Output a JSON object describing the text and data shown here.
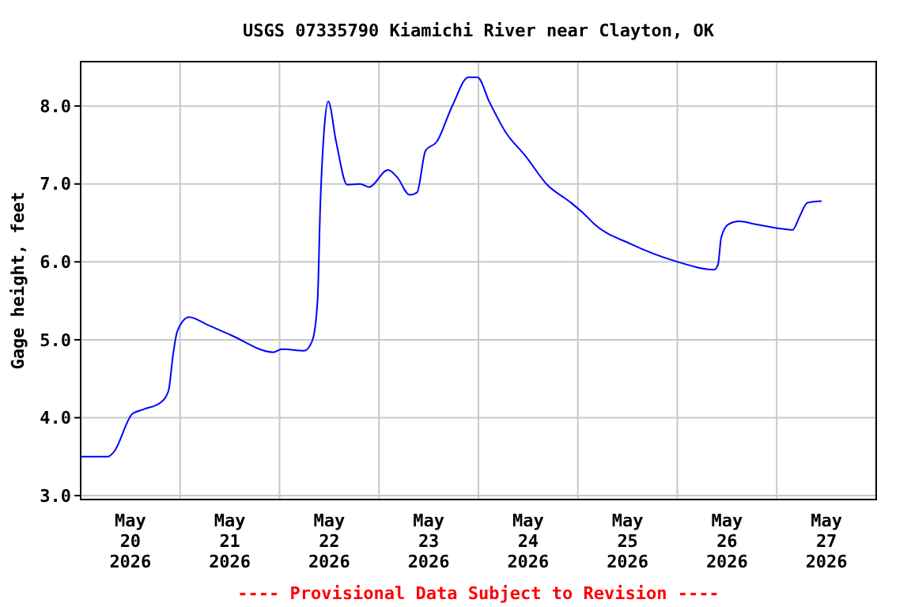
{
  "chart_data": {
    "type": "line",
    "title": "USGS 07335790 Kiamichi River near Clayton, OK",
    "ylabel": "Gage height, feet",
    "annotations": [
      "---- Provisional Data Subject to Revision ----"
    ],
    "x": [
      "2026-05-20T00:00",
      "2026-05-20T06:30",
      "2026-05-20T08:00",
      "2026-05-20T12:30",
      "2026-05-20T15:20",
      "2026-05-20T19:10",
      "2026-05-20T21:10",
      "2026-05-20T22:20",
      "2026-05-20T23:20",
      "2026-05-21T02:10",
      "2026-05-21T06:40",
      "2026-05-21T12:15",
      "2026-05-21T22:35",
      "2026-05-22T00:30",
      "2026-05-22T06:00",
      "2026-05-22T07:55",
      "2026-05-22T09:10",
      "2026-05-22T09:50",
      "2026-05-22T10:50",
      "2026-05-22T11:45",
      "2026-05-22T13:40",
      "2026-05-22T16:20",
      "2026-05-22T19:25",
      "2026-05-22T21:35",
      "2026-05-23T02:10",
      "2026-05-23T04:20",
      "2026-05-23T07:25",
      "2026-05-23T09:10",
      "2026-05-23T11:15",
      "2026-05-23T13:55",
      "2026-05-23T17:45",
      "2026-05-23T21:35",
      "2026-05-23T23:45",
      "2026-05-24T02:40",
      "2026-05-24T06:30",
      "2026-05-24T11:30",
      "2026-05-24T16:35",
      "2026-05-24T21:50",
      "2026-05-25T01:25",
      "2026-05-25T04:05",
      "2026-05-25T12:45",
      "2026-05-25T23:30",
      "2026-05-26T08:55",
      "2026-05-26T09:50",
      "2026-05-26T10:35",
      "2026-05-26T12:15",
      "2026-05-26T14:55",
      "2026-05-26T19:10",
      "2026-05-27T00:30",
      "2026-05-27T03:50",
      "2026-05-27T05:30",
      "2026-05-27T07:25",
      "2026-05-27T10:50"
    ],
    "series": [
      {
        "color": "#0000ff",
        "values": [
          3.5,
          3.5,
          3.56,
          4.05,
          4.11,
          4.19,
          4.34,
          4.82,
          5.11,
          5.29,
          5.19,
          5.06,
          4.84,
          4.88,
          4.86,
          4.99,
          5.5,
          6.72,
          7.74,
          8.06,
          7.54,
          6.99,
          7.0,
          6.96,
          7.18,
          7.09,
          6.86,
          6.89,
          7.43,
          7.54,
          8.01,
          8.37,
          8.37,
          8.05,
          7.67,
          7.35,
          6.99,
          6.78,
          6.62,
          6.48,
          6.23,
          6.01,
          5.9,
          5.97,
          6.31,
          6.48,
          6.52,
          6.48,
          6.43,
          6.41,
          6.58,
          6.76,
          6.78
        ]
      }
    ],
    "xlim": [
      "2026-05-20T00:00",
      "2026-05-28T00:00"
    ],
    "xticks": [
      {
        "value": "2026-05-20T12:00",
        "label": "May\n20\n2026"
      },
      {
        "value": "2026-05-21T12:00",
        "label": "May\n21\n2026"
      },
      {
        "value": "2026-05-22T12:00",
        "label": "May\n22\n2026"
      },
      {
        "value": "2026-05-23T12:00",
        "label": "May\n23\n2026"
      },
      {
        "value": "2026-05-24T12:00",
        "label": "May\n24\n2026"
      },
      {
        "value": "2026-05-25T12:00",
        "label": "May\n25\n2026"
      },
      {
        "value": "2026-05-26T12:00",
        "label": "May\n26\n2026"
      },
      {
        "value": "2026-05-27T12:00",
        "label": "May\n27\n2026"
      },
      {
        "value": "2026-05-21T00:00",
        "label": null
      },
      {
        "value": "2026-05-22T00:00",
        "label": null
      },
      {
        "value": "2026-05-23T00:00",
        "label": null
      },
      {
        "value": "2026-05-24T00:00",
        "label": null
      },
      {
        "value": "2026-05-25T00:00",
        "label": null
      },
      {
        "value": "2026-05-26T00:00",
        "label": null
      },
      {
        "value": "2026-05-27T00:00",
        "label": null
      }
    ],
    "ylim": [
      2.95,
      8.57
    ],
    "yticks": [
      {
        "value": 3,
        "label": "3.0"
      },
      {
        "value": 4,
        "label": "4.0"
      },
      {
        "value": 5,
        "label": "5.0"
      },
      {
        "value": 6,
        "label": "6.0"
      },
      {
        "value": 7,
        "label": "7.0"
      },
      {
        "value": 8,
        "label": "8.0"
      }
    ],
    "grid": true
  }
}
